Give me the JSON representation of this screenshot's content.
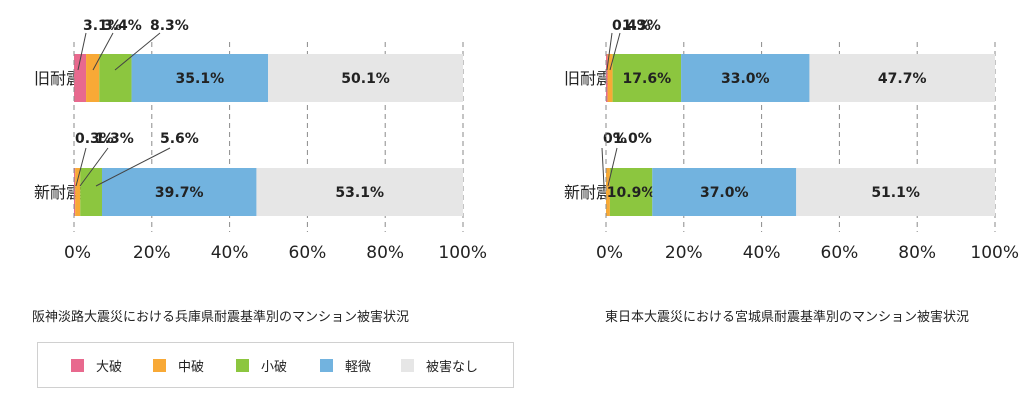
{
  "chart_data": [
    {
      "type": "bar",
      "orientation": "horizontal",
      "stacked": true,
      "title": "阪神淡路大震災における兵庫県耐震基準別のマンション被害状況",
      "categories": [
        "旧耐震",
        "新耐震"
      ],
      "series": [
        {
          "name": "大破",
          "values": [
            3.1,
            0.3
          ],
          "labels": [
            "3.1%",
            "0.3%"
          ]
        },
        {
          "name": "中破",
          "values": [
            3.4,
            1.3
          ],
          "labels": [
            "3.4%",
            "1.3%"
          ]
        },
        {
          "name": "小破",
          "values": [
            8.3,
            5.6
          ],
          "labels": [
            "8.3%",
            "5.6%"
          ]
        },
        {
          "name": "軽微",
          "values": [
            35.1,
            39.7
          ],
          "labels": [
            "35.1%",
            "39.7%"
          ]
        },
        {
          "name": "被害なし",
          "values": [
            50.1,
            53.1
          ],
          "labels": [
            "50.1%",
            "53.1%"
          ]
        }
      ],
      "xlim": [
        0,
        100
      ],
      "xticks": [
        "0%",
        "20%",
        "40%",
        "60%",
        "80%",
        "100%"
      ],
      "grid": "vertical dashed"
    },
    {
      "type": "bar",
      "orientation": "horizontal",
      "stacked": true,
      "title": "東日本大震災における宮城県耐震基準別のマンション被害状況",
      "categories": [
        "旧耐震",
        "新耐震"
      ],
      "series": [
        {
          "name": "大破",
          "values": [
            0.4,
            0.0
          ],
          "labels": [
            "0.4%",
            "0%"
          ]
        },
        {
          "name": "中破",
          "values": [
            1.3,
            1.0
          ],
          "labels": [
            "1.3%",
            "1.0%"
          ]
        },
        {
          "name": "小破",
          "values": [
            17.6,
            10.9
          ],
          "labels": [
            "17.6%",
            "10.9%"
          ]
        },
        {
          "name": "軽微",
          "values": [
            33.0,
            37.0
          ],
          "labels": [
            "33.0%",
            "37.0%"
          ]
        },
        {
          "name": "被害なし",
          "values": [
            47.7,
            51.1
          ],
          "labels": [
            "47.7%",
            "51.1%"
          ]
        }
      ],
      "xlim": [
        0,
        100
      ],
      "xticks": [
        "0%",
        "20%",
        "40%",
        "60%",
        "80%",
        "100%"
      ],
      "grid": "vertical dashed"
    }
  ],
  "legend": [
    {
      "label": "大破",
      "color": "#e8698e"
    },
    {
      "label": "中破",
      "color": "#f8a936"
    },
    {
      "label": "小破",
      "color": "#8cc63f"
    },
    {
      "label": "軽微",
      "color": "#72b3df"
    },
    {
      "label": "被害なし",
      "color": "#e6e6e6"
    }
  ],
  "captions": {
    "left": "阪神淡路大震災における兵庫県耐震基準別のマンション被害状況",
    "right": "東日本大震災における宮城県耐震基準別のマンション被害状況"
  }
}
